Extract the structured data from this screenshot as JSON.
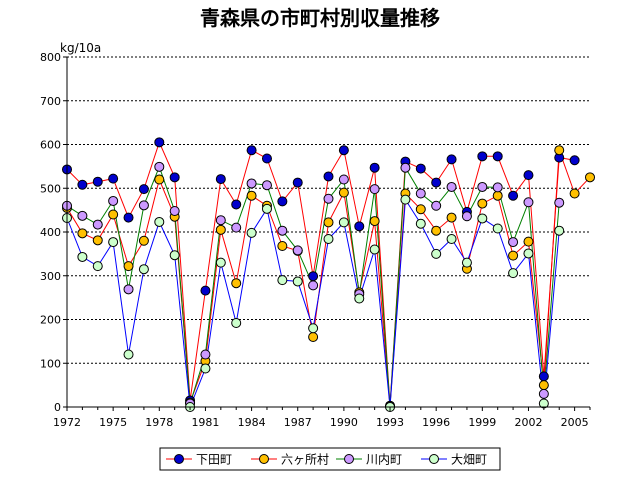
{
  "chart_data": {
    "type": "line",
    "title": "青森県の市町村別収量推移",
    "ylabel": "kg/10a",
    "xlabel": "",
    "ylim": [
      0,
      800
    ],
    "yticks": [
      0,
      100,
      200,
      300,
      400,
      500,
      600,
      700,
      800
    ],
    "xlim": [
      1972,
      2006
    ],
    "xticks": [
      1972,
      1975,
      1978,
      1981,
      1984,
      1987,
      1990,
      1993,
      1996,
      1999,
      2002,
      2005
    ],
    "grid": true,
    "legend_position": "bottom",
    "years": [
      1972,
      1973,
      1974,
      1975,
      1976,
      1977,
      1978,
      1979,
      1980,
      1981,
      1982,
      1983,
      1984,
      1985,
      1986,
      1987,
      1988,
      1989,
      1990,
      1991,
      1992,
      1993,
      1994,
      1995,
      1996,
      1997,
      1998,
      1999,
      2000,
      2001,
      2002,
      2003,
      2004,
      2005,
      2006
    ],
    "series": [
      {
        "name": "下田町",
        "color": "#0000ff",
        "fill": "#0000cc",
        "line": "#ff0000",
        "values": [
          543,
          508,
          515,
          522,
          433,
          498,
          605,
          525,
          15,
          266,
          521,
          463,
          587,
          568,
          470,
          513,
          299,
          527,
          587,
          413,
          547,
          3,
          561,
          545,
          513,
          566,
          446,
          573,
          573,
          483,
          530,
          70,
          570,
          564,
          null
        ]
      },
      {
        "name": "六ヶ所村",
        "color": "#ffc000",
        "fill": "#ffc000",
        "line": "#ff0000",
        "values": [
          455,
          397,
          381,
          440,
          322,
          380,
          520,
          435,
          10,
          105,
          405,
          283,
          483,
          460,
          368,
          357,
          160,
          422,
          490,
          262,
          425,
          2,
          488,
          452,
          403,
          433,
          316,
          465,
          483,
          346,
          378,
          50,
          587,
          488,
          525
        ]
      },
      {
        "name": "川内町",
        "color": "#cc99ff",
        "fill": "#cc99ff",
        "line": "#008000",
        "values": [
          460,
          437,
          417,
          471,
          269,
          461,
          549,
          448,
          8,
          120,
          427,
          410,
          511,
          507,
          403,
          358,
          278,
          476,
          520,
          258,
          498,
          2,
          547,
          488,
          460,
          503,
          436,
          503,
          502,
          377,
          468,
          30,
          467,
          null,
          null
        ]
      },
      {
        "name": "大畑町",
        "color": "#ccffcc",
        "fill": "#ccffcc",
        "line": "#0000ff",
        "values": [
          432,
          343,
          322,
          377,
          120,
          315,
          423,
          347,
          0,
          88,
          330,
          192,
          398,
          453,
          290,
          287,
          180,
          384,
          422,
          248,
          360,
          0,
          474,
          419,
          350,
          384,
          330,
          431,
          408,
          306,
          351,
          8,
          403,
          null,
          null
        ]
      }
    ]
  }
}
